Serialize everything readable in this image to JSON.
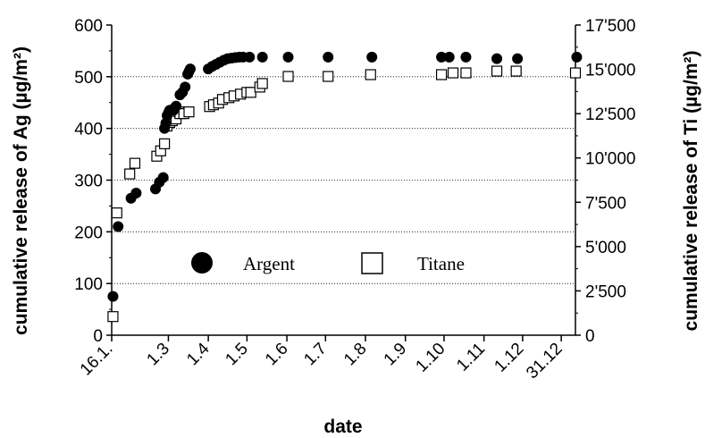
{
  "chart_data": {
    "type": "scatter",
    "xlabel": "date",
    "ylabel_left": "cumulative release of Ag (µg/m²)",
    "ylabel_right": "cumulative release of Ti (µg/m²)",
    "x_tick_labels": [
      "16.1.",
      "1.3",
      "1.4",
      "1.5",
      "1.6",
      "1.7",
      "1.8",
      "1.9",
      "1.10",
      "1.11",
      "1.12",
      "31.12"
    ],
    "x_tick_days": [
      0,
      44,
      75,
      105,
      136,
      166,
      197,
      228,
      258,
      289,
      319,
      349
    ],
    "xlim_days": [
      0,
      360
    ],
    "ylim_left": [
      0,
      600
    ],
    "yticks_left": [
      "0",
      "100",
      "200",
      "300",
      "400",
      "500",
      "600"
    ],
    "ylim_right": [
      0,
      17500
    ],
    "yticks_right": [
      "0",
      "2'500",
      "5'000",
      "7'500",
      "10'000",
      "12'500",
      "15'000",
      "17'500"
    ],
    "grid_y": true,
    "legend_position": "center",
    "series": [
      {
        "name": "Argent",
        "axis": "left",
        "marker": "filled-circle",
        "x_days": [
          1,
          5,
          15,
          19,
          34,
          37,
          40,
          41,
          42,
          43,
          44,
          45,
          48,
          49,
          50,
          53,
          55,
          57,
          59,
          60,
          61,
          75,
          78,
          81,
          84,
          87,
          90,
          93,
          96,
          99,
          102,
          107,
          117,
          137,
          168,
          202,
          256,
          262,
          275,
          299,
          315,
          361
        ],
        "values": [
          75,
          210,
          265,
          275,
          283,
          296,
          305,
          400,
          410,
          425,
          430,
          435,
          435,
          440,
          443,
          465,
          470,
          480,
          505,
          510,
          515,
          515,
          520,
          524,
          528,
          532,
          535,
          536,
          537,
          538,
          538,
          538,
          538,
          538,
          538,
          538,
          538,
          538,
          538,
          535,
          535,
          538
        ]
      },
      {
        "name": "Titane",
        "axis": "right",
        "marker": "open-square",
        "x_days": [
          1,
          4,
          14,
          18,
          35,
          38,
          41,
          43,
          45,
          47,
          50,
          52,
          53,
          56,
          60,
          76,
          79,
          83,
          86,
          91,
          95,
          100,
          105,
          108,
          115,
          117,
          137,
          168,
          201,
          256,
          265,
          275,
          299,
          314,
          360
        ],
        "values": [
          1050,
          6900,
          9100,
          9700,
          10100,
          10400,
          10800,
          11800,
          12000,
          12100,
          12200,
          12600,
          12500,
          12500,
          12600,
          12900,
          13000,
          13100,
          13300,
          13400,
          13500,
          13600,
          13700,
          13700,
          14000,
          14200,
          14600,
          14600,
          14700,
          14700,
          14800,
          14800,
          14900,
          14900,
          14800
        ]
      }
    ]
  }
}
